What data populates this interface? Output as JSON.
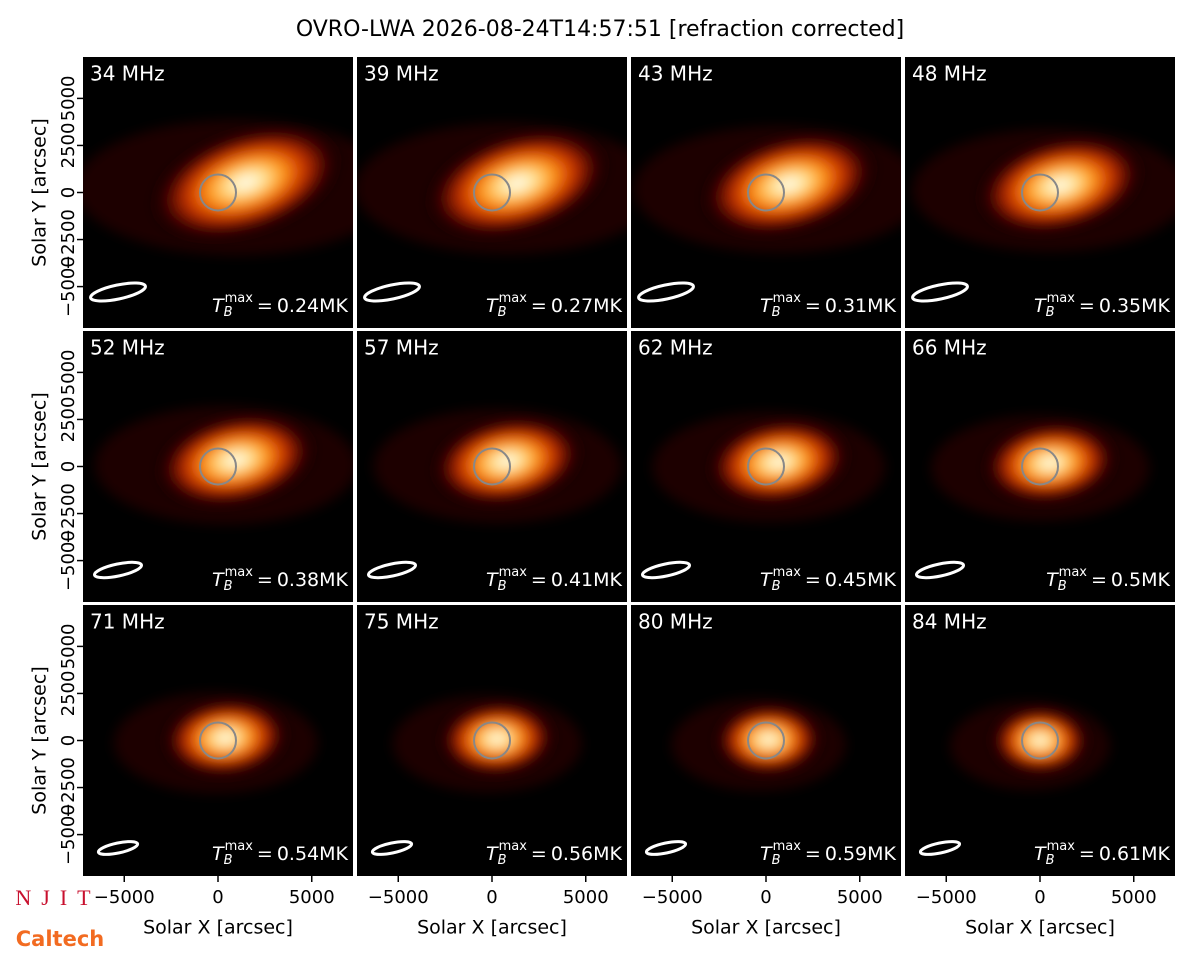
{
  "chart_data": {
    "type": "image_grid",
    "title": "OVRO-LWA 2026-08-24T14:57:51 [refraction corrected]",
    "xlabel": "Solar X [arcsec]",
    "ylabel": "Solar Y [arcsec]",
    "xlim": [
      -7200,
      7200
    ],
    "ylim": [
      -7200,
      7200
    ],
    "xticks": [
      {
        "value": -5000,
        "label": "−5000"
      },
      0,
      5000
    ],
    "yticks": [
      {
        "value": -5000,
        "label": "−5000"
      },
      {
        "value": -2500,
        "label": "−2500"
      },
      0,
      2500,
      5000
    ],
    "tmax_text": {
      "symbol": "T",
      "sub": "B",
      "sup": "max",
      "eq": "=",
      "unit": "MK"
    },
    "panels": [
      {
        "label": "34 MHz",
        "tmax": 0.24
      },
      {
        "label": "39 MHz",
        "tmax": 0.27
      },
      {
        "label": "43 MHz",
        "tmax": 0.31
      },
      {
        "label": "48 MHz",
        "tmax": 0.35
      },
      {
        "label": "52 MHz",
        "tmax": 0.38
      },
      {
        "label": "57 MHz",
        "tmax": 0.41
      },
      {
        "label": "62 MHz",
        "tmax": 0.45
      },
      {
        "label": "66 MHz",
        "tmax": 0.5
      },
      {
        "label": "71 MHz",
        "tmax": 0.54
      },
      {
        "label": "75 MHz",
        "tmax": 0.56
      },
      {
        "label": "80 MHz",
        "tmax": 0.59
      },
      {
        "label": "84 MHz",
        "tmax": 0.61
      }
    ]
  },
  "logos": [
    "NJIT",
    "Caltech"
  ]
}
